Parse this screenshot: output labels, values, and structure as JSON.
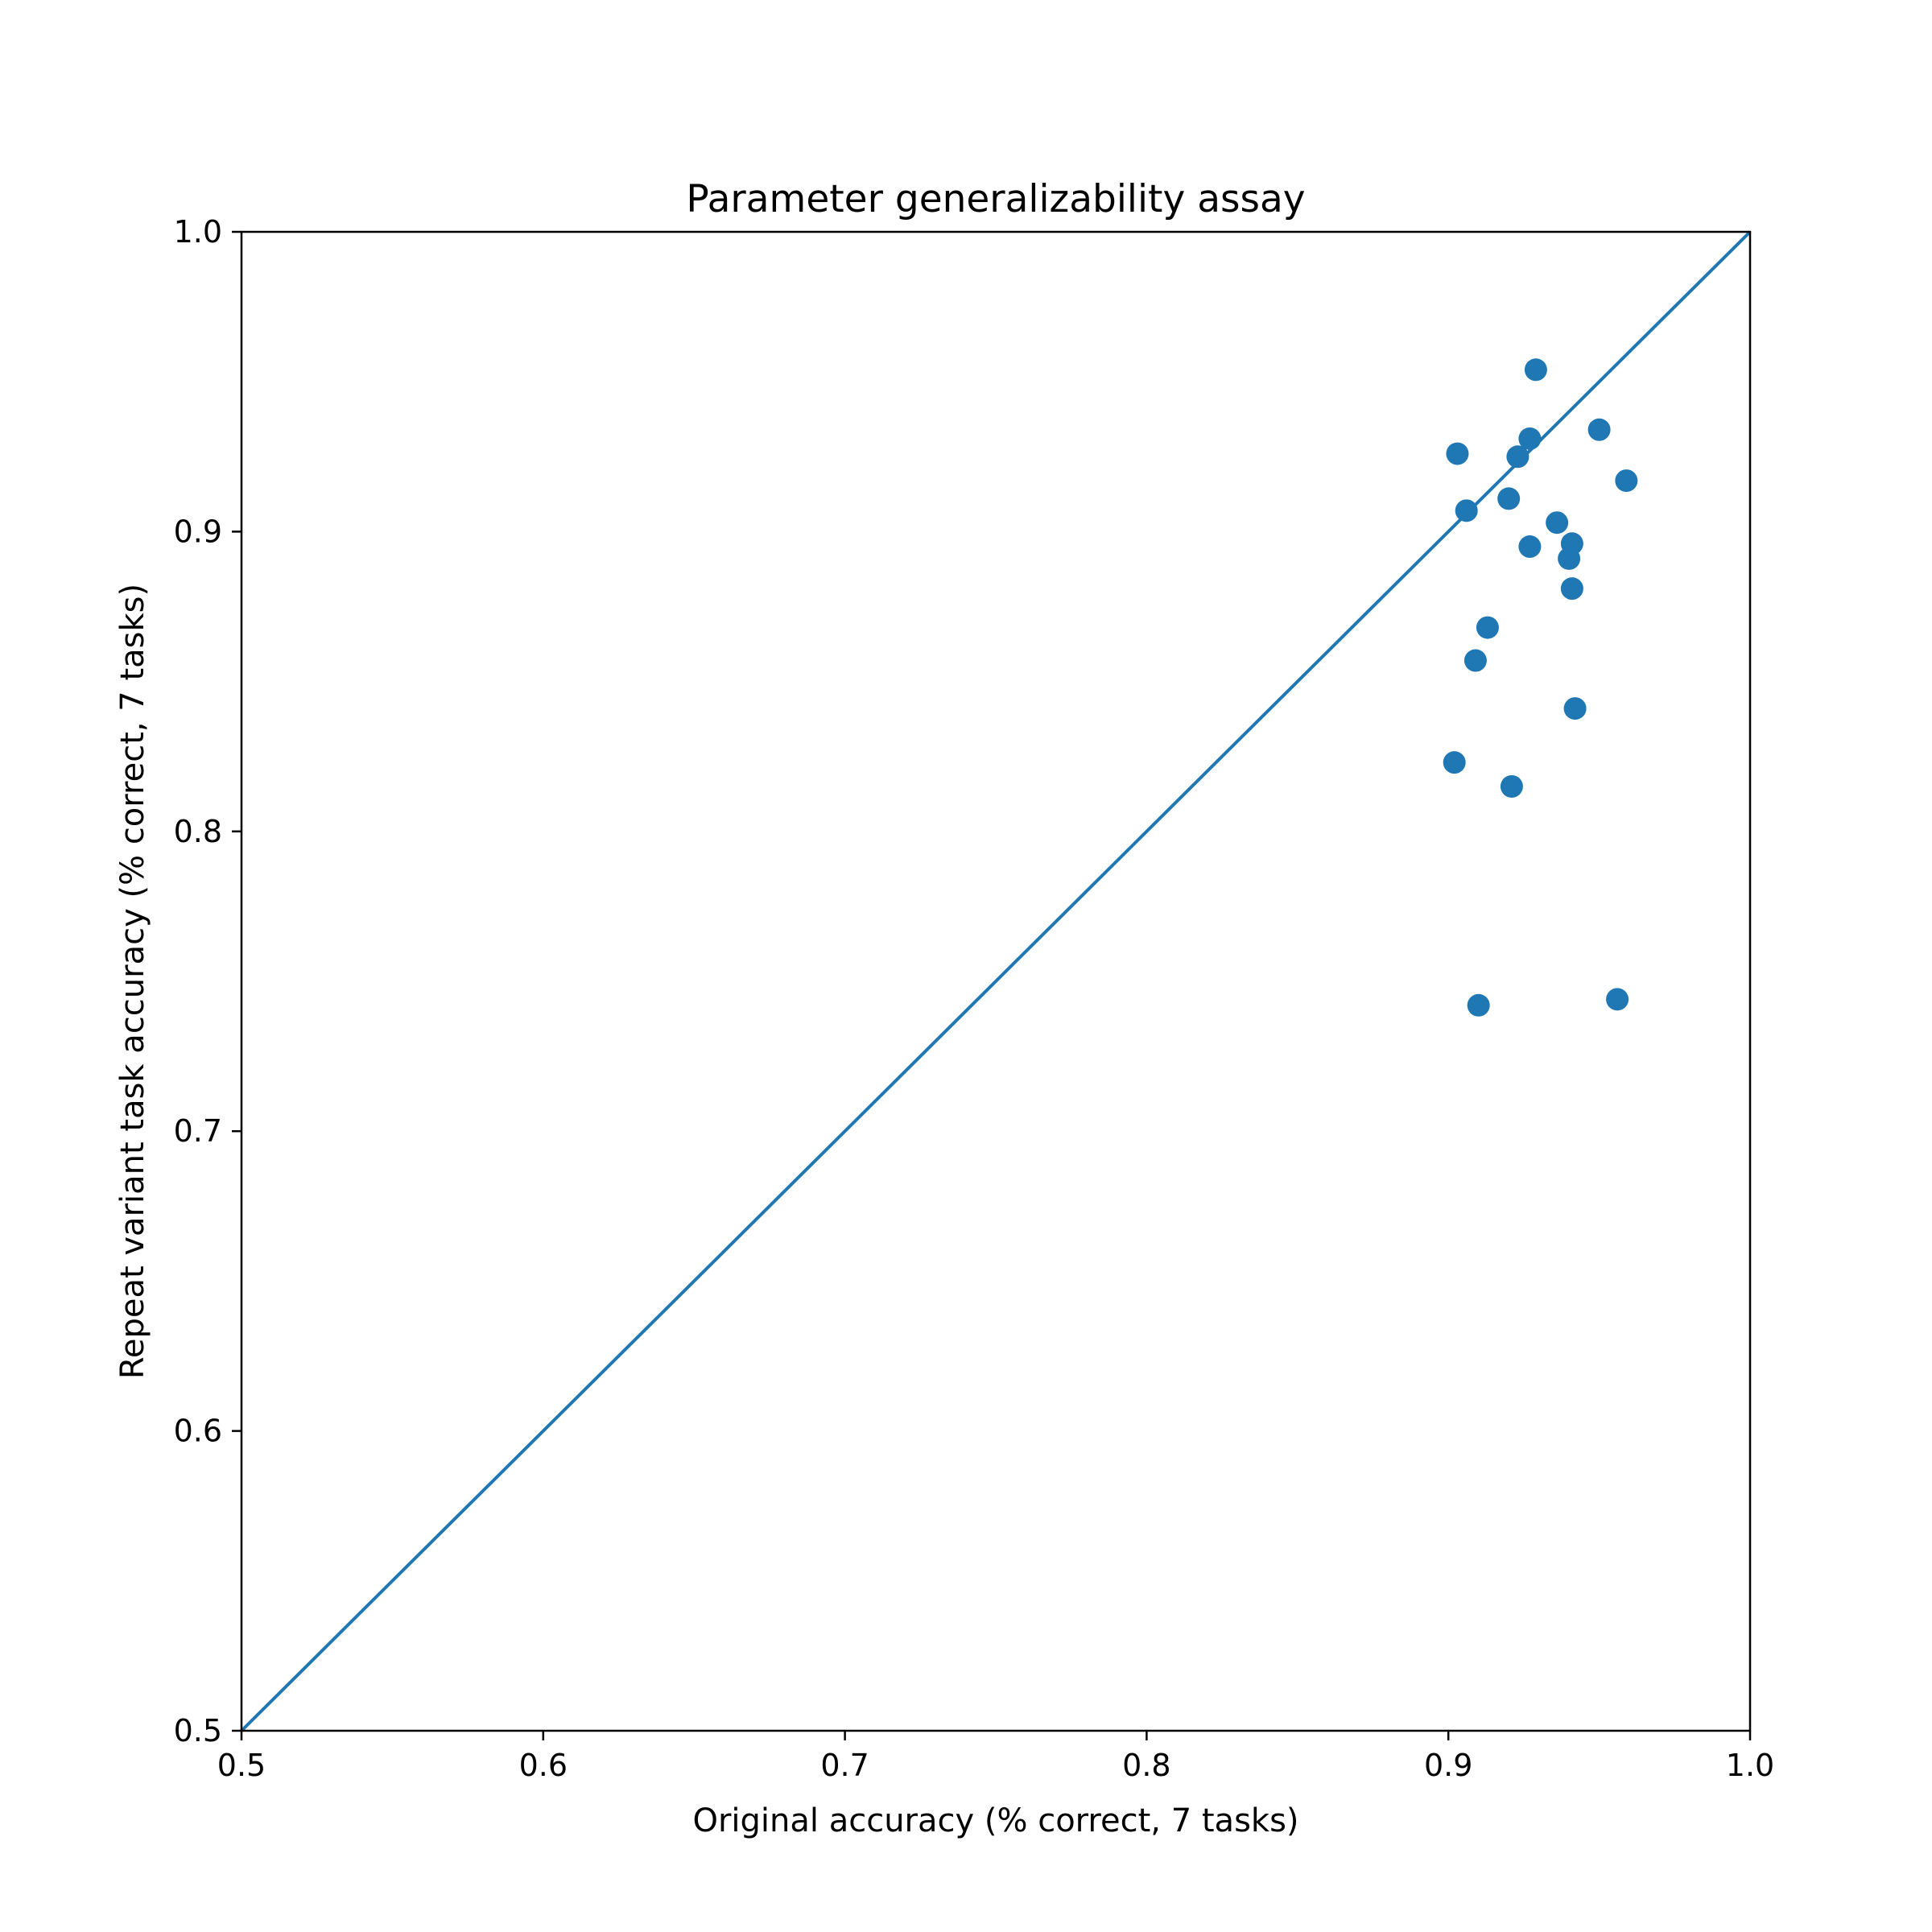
{
  "chart_data": {
    "type": "scatter",
    "title": "Parameter generalizability assay",
    "xlabel": "Original accuracy (% correct, 7 tasks)",
    "ylabel": "Repeat variant task accuracy (% correct, 7 tasks)",
    "xlim": [
      0.5,
      1.0
    ],
    "ylim": [
      0.5,
      1.0
    ],
    "xticks": [
      "0.5",
      "0.6",
      "0.7",
      "0.8",
      "0.9",
      "1.0"
    ],
    "yticks": [
      "0.5",
      "0.6",
      "0.7",
      "0.8",
      "0.9",
      "1.0"
    ],
    "grid": false,
    "reference_line": {
      "type": "identity",
      "from": [
        0.5,
        0.5
      ],
      "to": [
        1.0,
        1.0
      ]
    },
    "color": "#1f77b4",
    "points": [
      {
        "x": 0.929,
        "y": 0.954
      },
      {
        "x": 0.95,
        "y": 0.934
      },
      {
        "x": 0.927,
        "y": 0.931
      },
      {
        "x": 0.903,
        "y": 0.926
      },
      {
        "x": 0.923,
        "y": 0.925
      },
      {
        "x": 0.959,
        "y": 0.917
      },
      {
        "x": 0.92,
        "y": 0.911
      },
      {
        "x": 0.906,
        "y": 0.907
      },
      {
        "x": 0.936,
        "y": 0.903
      },
      {
        "x": 0.941,
        "y": 0.896
      },
      {
        "x": 0.927,
        "y": 0.895
      },
      {
        "x": 0.94,
        "y": 0.891
      },
      {
        "x": 0.941,
        "y": 0.881
      },
      {
        "x": 0.913,
        "y": 0.868
      },
      {
        "x": 0.909,
        "y": 0.857
      },
      {
        "x": 0.942,
        "y": 0.841
      },
      {
        "x": 0.902,
        "y": 0.823
      },
      {
        "x": 0.921,
        "y": 0.815
      },
      {
        "x": 0.956,
        "y": 0.744
      },
      {
        "x": 0.91,
        "y": 0.742
      }
    ]
  }
}
